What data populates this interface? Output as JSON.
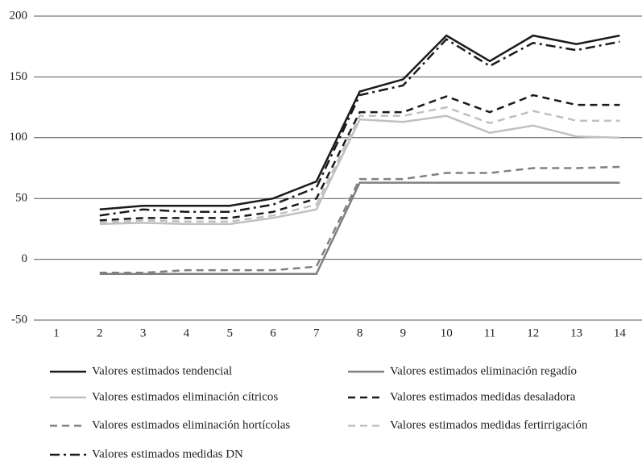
{
  "chart_data": {
    "type": "line",
    "categories": [
      "1",
      "2",
      "3",
      "4",
      "5",
      "6",
      "7",
      "8",
      "9",
      "10",
      "11",
      "12",
      "13",
      "14"
    ],
    "ylim": [
      -50,
      200
    ],
    "yticks": [
      -50,
      0,
      50,
      100,
      150,
      200
    ],
    "grid": true,
    "legend": "bottom",
    "series": [
      {
        "name": "Valores estimados tendencial",
        "color": "#1a1a1a",
        "dash": "solid",
        "values": [
          null,
          41,
          44,
          44,
          44,
          50,
          64,
          138,
          148,
          184,
          163,
          184,
          177,
          184
        ]
      },
      {
        "name": "Valores estimados eliminación regadío",
        "color": "#808080",
        "dash": "solid",
        "values": [
          null,
          -12,
          -12,
          -12,
          -12,
          -12,
          -12,
          63,
          63,
          63,
          63,
          63,
          63,
          63
        ]
      },
      {
        "name": "Valores estimados eliminación cítricos",
        "color": "#c0c0c0",
        "dash": "solid",
        "values": [
          null,
          29,
          30,
          29,
          29,
          34,
          41,
          115,
          113,
          118,
          104,
          110,
          101,
          100
        ]
      },
      {
        "name": "Valores estimados medidas desaladora",
        "color": "#1a1a1a",
        "dash": "dash",
        "values": [
          null,
          32,
          34,
          34,
          34,
          39,
          50,
          121,
          121,
          134,
          121,
          135,
          127,
          127
        ]
      },
      {
        "name": "Valores estimados eliminación hortícolas",
        "color": "#808080",
        "dash": "dash",
        "values": [
          null,
          -11,
          -11,
          -9,
          -9,
          -9,
          -6,
          66,
          66,
          71,
          71,
          75,
          75,
          76
        ]
      },
      {
        "name": "Valores estimados medidas fertirrigación",
        "color": "#c0c0c0",
        "dash": "dash",
        "values": [
          null,
          30,
          32,
          31,
          31,
          36,
          45,
          118,
          118,
          125,
          112,
          122,
          114,
          114
        ]
      },
      {
        "name": "Valores estimados medidas DN",
        "color": "#1a1a1a",
        "dash": "dashdot",
        "values": [
          null,
          36,
          41,
          39,
          39,
          45,
          59,
          135,
          143,
          181,
          159,
          178,
          172,
          179
        ]
      }
    ]
  }
}
